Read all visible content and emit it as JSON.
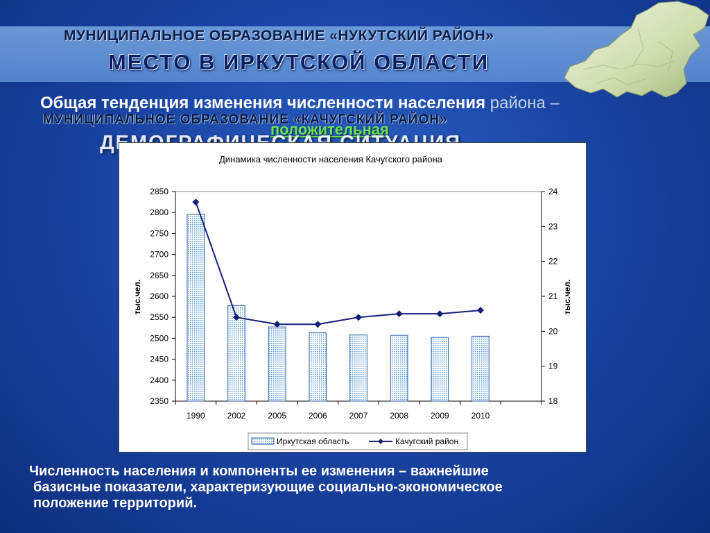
{
  "header": {
    "line1": "МУНИЦИПАЛЬНОЕ ОБРАЗОВАНИЕ «НУКУТСКИЙ РАЙОН»",
    "line2": "МЕСТО В ИРКУТСКОЙ ОБЛАСТИ"
  },
  "subtitle": {
    "bold": "Общая тенденция изменения численности населения",
    "light": " района –",
    "accent": "положительная"
  },
  "overlay": {
    "line1": "МУНИЦИПАЛЬНОЕ ОБРАЗОВАНИЕ «КАЧУГСКИЙ РАЙОН»",
    "line2": "ДЕМОГРАФИЧЕСКАЯ СИТУАЦИЯ"
  },
  "colors": {
    "bar_fill": "#c9e0f7",
    "bar_stroke": "#2b5fa8",
    "line": "#12207a",
    "accent_text": "#6be05b"
  },
  "chart_data": {
    "type": "bar",
    "title": "Динамика численности населения Качугского района",
    "categories": [
      "1990",
      "2002",
      "2005",
      "2006",
      "2007",
      "2008",
      "2009",
      "2010"
    ],
    "y_left_label": "тыс.чел.",
    "y_right_label": "тыс.чел.",
    "y_left_range": [
      2350,
      2850
    ],
    "y_left_ticks": [
      2350,
      2400,
      2450,
      2500,
      2550,
      2600,
      2650,
      2700,
      2750,
      2800,
      2850
    ],
    "y_right_range": [
      18,
      24
    ],
    "y_right_ticks": [
      18,
      19,
      20,
      21,
      22,
      23,
      24
    ],
    "series": [
      {
        "name": "Иркутская область",
        "type": "bar",
        "axis": "left",
        "values": [
          2796,
          2578,
          2527,
          2513,
          2508,
          2507,
          2502,
          2505
        ]
      },
      {
        "name": "Качугский район",
        "type": "line",
        "axis": "right",
        "values": [
          23.7,
          20.4,
          20.2,
          20.2,
          20.4,
          20.5,
          20.5,
          20.6
        ]
      }
    ],
    "legend_position": "bottom",
    "grid": false
  },
  "footer_note": {
    "line1": "Численность населения и компоненты ее изменения  – важнейшие",
    "line2": "базисные показатели, характеризующие социально-экономическое",
    "line3": "положение территорий."
  }
}
